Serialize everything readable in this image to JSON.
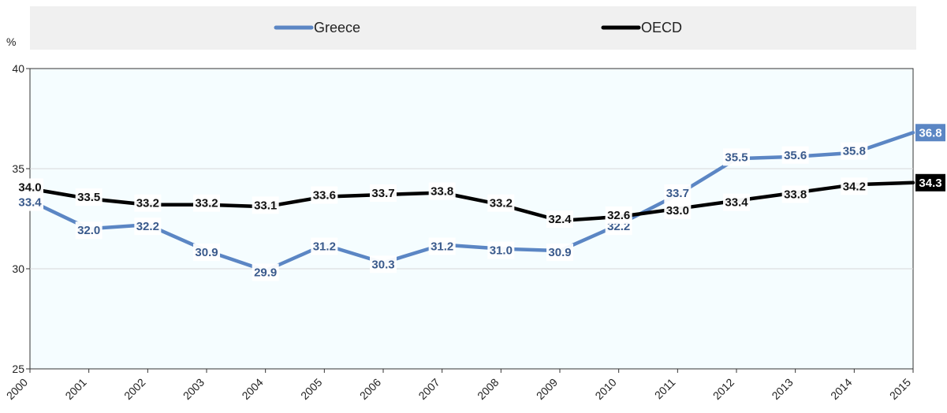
{
  "chart_data": {
    "type": "line",
    "unit_label": "%",
    "x": [
      "2000",
      "2001",
      "2002",
      "2003",
      "2004",
      "2005",
      "2006",
      "2007",
      "2008",
      "2009",
      "2010",
      "2011",
      "2012",
      "2013",
      "2014",
      "2015"
    ],
    "ylim": [
      25,
      40
    ],
    "yticks": [
      25,
      30,
      35,
      40
    ],
    "grid": true,
    "legend": "top",
    "series": [
      {
        "name": "Greece",
        "color": "#5b86c4",
        "values": [
          33.4,
          32.0,
          32.2,
          30.9,
          29.9,
          31.2,
          30.3,
          31.2,
          31.0,
          30.9,
          32.2,
          33.7,
          35.5,
          35.6,
          35.8,
          36.8
        ],
        "labels": [
          "33.4",
          "32.0",
          "32.2",
          "30.9",
          "29.9",
          "31.2",
          "30.3",
          "31.2",
          "31.0",
          "30.9",
          "32.2",
          "33.7",
          "35.5",
          "35.6",
          "35.8",
          "36.8"
        ]
      },
      {
        "name": "OECD",
        "color": "#000000",
        "values": [
          34.0,
          33.5,
          33.2,
          33.2,
          33.1,
          33.6,
          33.7,
          33.8,
          33.2,
          32.4,
          32.6,
          33.0,
          33.4,
          33.8,
          34.2,
          34.3
        ],
        "labels": [
          "34.0",
          "33.5",
          "33.2",
          "33.2",
          "33.1",
          "33.6",
          "33.7",
          "33.8",
          "33.2",
          "32.4",
          "32.6",
          "33.0",
          "33.4",
          "33.8",
          "34.2",
          "34.3"
        ]
      }
    ]
  }
}
